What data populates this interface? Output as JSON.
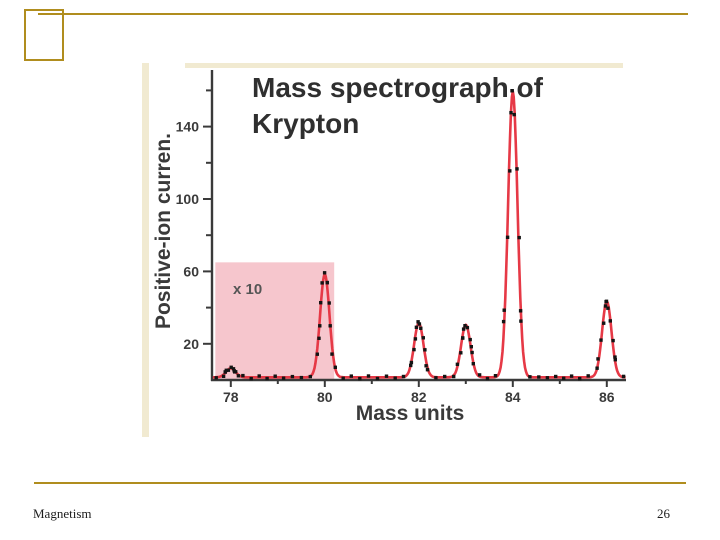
{
  "slide": {
    "footer_left": "Magnetism",
    "page_number": "26",
    "accent_color": "#b08d1e"
  },
  "chart_data": {
    "type": "line",
    "title": "Mass spectrograph of Krypton",
    "xlabel": "Mass units",
    "ylabel": "Positive-ion curren.",
    "x_ticks": [
      78,
      80,
      82,
      84,
      86
    ],
    "y_ticks": [
      20,
      60,
      100,
      140
    ],
    "xlim": [
      77.6,
      86.4
    ],
    "ylim": [
      0,
      170
    ],
    "baseline": 1.5,
    "sigma": 0.1,
    "peaks": [
      {
        "mass": 78,
        "height": 5
      },
      {
        "mass": 80,
        "height": 57
      },
      {
        "mass": 82,
        "height": 30
      },
      {
        "mass": 83,
        "height": 29
      },
      {
        "mass": 84,
        "height": 158
      },
      {
        "mass": 86,
        "height": 42
      }
    ],
    "magnified_region": {
      "label": "x 10",
      "x_range": [
        77.65,
        80.2
      ],
      "y_range": [
        0,
        65
      ]
    },
    "line_color": "#e63946",
    "marker_color": "#141414",
    "region_fill": "#f6c6cd",
    "axis_color": "#3a3a3a"
  }
}
